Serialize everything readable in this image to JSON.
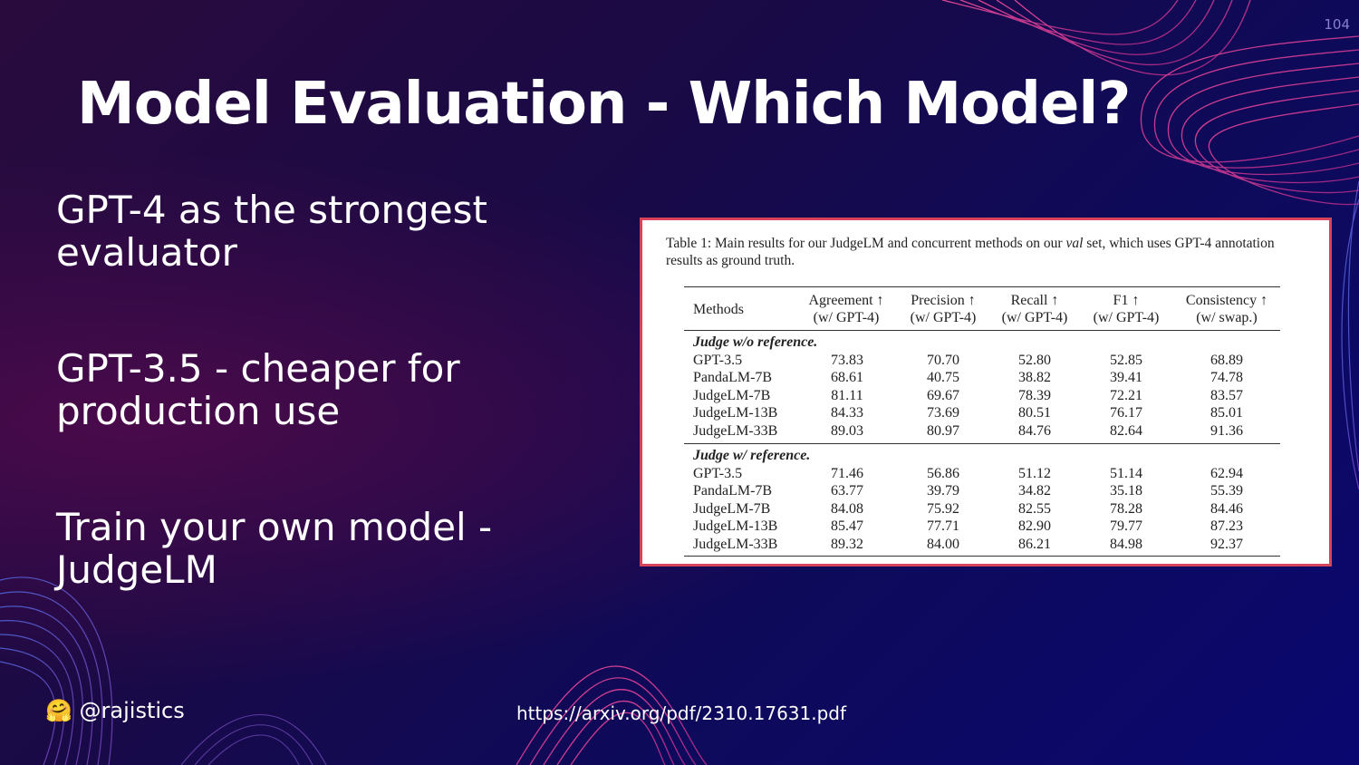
{
  "slide_number": "104",
  "title": "Model Evaluation - Which Model?",
  "bullets": [
    "GPT-4 as the strongest evaluator",
    "GPT-3.5 - cheaper for production use",
    "Train your own model - JudgeLM"
  ],
  "table": {
    "caption_prefix": "Table 1: Main results for our JudgeLM and concurrent methods on our",
    "caption_italic": "val",
    "caption_suffix": "set, which uses GPT-4 annotation results as ground truth.",
    "headers": [
      {
        "line1": "Methods",
        "line2": ""
      },
      {
        "line1": "Agreement ↑",
        "line2": "(w/ GPT-4)"
      },
      {
        "line1": "Precision ↑",
        "line2": "(w/ GPT-4)"
      },
      {
        "line1": "Recall ↑",
        "line2": "(w/ GPT-4)"
      },
      {
        "line1": "F1 ↑",
        "line2": "(w/ GPT-4)"
      },
      {
        "line1": "Consistency ↑",
        "line2": "(w/ swap.)"
      }
    ],
    "sections": [
      {
        "label": "Judge w/o reference.",
        "rows": [
          [
            "GPT-3.5",
            "73.83",
            "70.70",
            "52.80",
            "52.85",
            "68.89"
          ],
          [
            "PandaLM-7B",
            "68.61",
            "40.75",
            "38.82",
            "39.41",
            "74.78"
          ],
          [
            "JudgeLM-7B",
            "81.11",
            "69.67",
            "78.39",
            "72.21",
            "83.57"
          ],
          [
            "JudgeLM-13B",
            "84.33",
            "73.69",
            "80.51",
            "76.17",
            "85.01"
          ],
          [
            "JudgeLM-33B",
            "89.03",
            "80.97",
            "84.76",
            "82.64",
            "91.36"
          ]
        ]
      },
      {
        "label": "Judge w/ reference.",
        "rows": [
          [
            "GPT-3.5",
            "71.46",
            "56.86",
            "51.12",
            "51.14",
            "62.94"
          ],
          [
            "PandaLM-7B",
            "63.77",
            "39.79",
            "34.82",
            "35.18",
            "55.39"
          ],
          [
            "JudgeLM-7B",
            "84.08",
            "75.92",
            "82.55",
            "78.28",
            "84.46"
          ],
          [
            "JudgeLM-13B",
            "85.47",
            "77.71",
            "82.90",
            "79.77",
            "87.23"
          ],
          [
            "JudgeLM-33B",
            "89.32",
            "84.00",
            "86.21",
            "84.98",
            "92.37"
          ]
        ]
      }
    ]
  },
  "footer": {
    "emoji": "🤗",
    "handle": "@rajistics",
    "link": "https://arxiv.org/pdf/2310.17631.pdf"
  },
  "colors": {
    "accent_pink": "#e0307a",
    "accent_blue": "#4a6fe8",
    "table_border": "#d9435a"
  }
}
